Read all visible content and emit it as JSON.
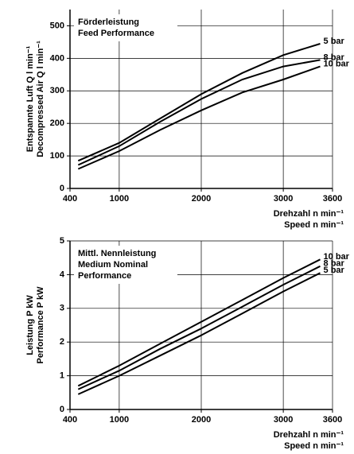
{
  "chart_data": [
    {
      "type": "line",
      "annotation": [
        "Förderleistung",
        "Feed Performance"
      ],
      "ylabel": [
        "Entspannte Luft Q l min⁻¹",
        "Decompressed Air Q l min⁻¹"
      ],
      "xlabel": [
        "Drehzahl n min⁻¹",
        "Speed n min⁻¹"
      ],
      "x": [
        500,
        1000,
        1500,
        2000,
        2500,
        3000,
        3450
      ],
      "series": [
        {
          "name": "5 bar",
          "color": "#000000",
          "values": [
            85,
            140,
            215,
            290,
            355,
            410,
            445
          ]
        },
        {
          "name": "8 bar",
          "color": "#000000",
          "values": [
            72,
            130,
            205,
            275,
            335,
            375,
            395
          ]
        },
        {
          "name": "10 bar",
          "color": "#000000",
          "values": [
            60,
            115,
            180,
            240,
            295,
            335,
            375
          ]
        }
      ],
      "xlim": [
        400,
        3600
      ],
      "xticks": [
        400,
        1000,
        2000,
        3000,
        3600
      ],
      "ylim": [
        0,
        550
      ],
      "yticks": [
        0,
        100,
        200,
        300,
        400,
        500
      ],
      "grid": true
    },
    {
      "type": "line",
      "annotation": [
        "Mittl. Nennleistung",
        "Medium Nominal",
        "Performance"
      ],
      "ylabel": [
        "Leistung P kW",
        "Performance P kW"
      ],
      "xlabel": [
        "Drehzahl n min⁻¹",
        "Speed n min⁻¹"
      ],
      "x": [
        500,
        1000,
        1500,
        2000,
        2500,
        3000,
        3450
      ],
      "series": [
        {
          "name": "10 bar",
          "color": "#000000",
          "values": [
            0.7,
            1.3,
            1.95,
            2.6,
            3.25,
            3.9,
            4.45
          ]
        },
        {
          "name": "8 bar",
          "color": "#000000",
          "values": [
            0.6,
            1.15,
            1.8,
            2.4,
            3.05,
            3.7,
            4.25
          ]
        },
        {
          "name": "5 bar",
          "color": "#000000",
          "values": [
            0.45,
            1.0,
            1.6,
            2.2,
            2.85,
            3.5,
            4.05
          ]
        }
      ],
      "xlim": [
        400,
        3600
      ],
      "xticks": [
        400,
        1000,
        2000,
        3000,
        3600
      ],
      "ylim": [
        0,
        5
      ],
      "yticks": [
        0,
        1,
        2,
        3,
        4,
        5
      ],
      "grid": true
    }
  ]
}
